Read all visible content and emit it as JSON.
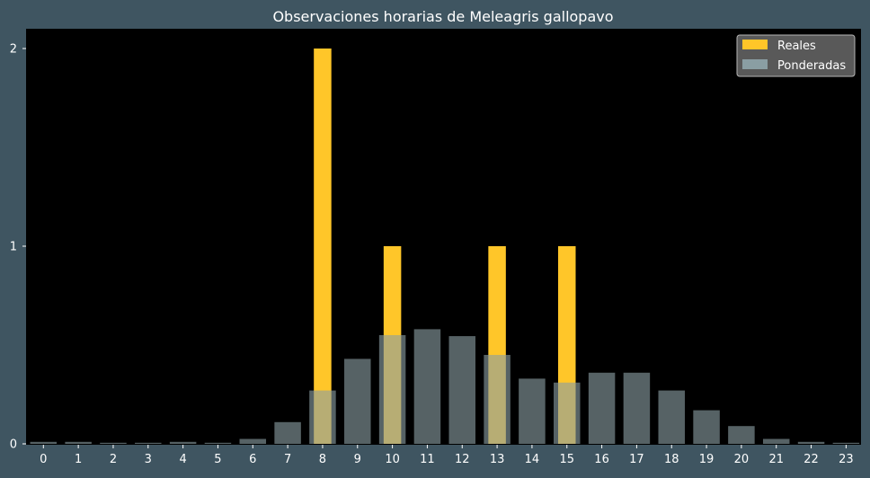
{
  "chart_data": {
    "type": "bar",
    "title": "Observaciones horarias de Meleagris gallopavo",
    "xlabel": "",
    "ylabel": "",
    "categories": [
      "0",
      "1",
      "2",
      "3",
      "4",
      "5",
      "6",
      "7",
      "8",
      "9",
      "10",
      "11",
      "12",
      "13",
      "14",
      "15",
      "16",
      "17",
      "18",
      "19",
      "20",
      "21",
      "22",
      "23"
    ],
    "ylim": [
      0,
      2.1
    ],
    "yticks": [
      0,
      1,
      2
    ],
    "grid": false,
    "legend_position": "top-right",
    "series": [
      {
        "name": "Reales",
        "color": "#ffc629",
        "values": [
          0,
          0,
          0,
          0,
          0,
          0,
          0,
          0,
          2,
          0,
          1,
          0,
          0,
          1,
          0,
          1,
          0,
          0,
          0,
          0,
          0,
          0,
          0,
          0
        ]
      },
      {
        "name": "Ponderadas",
        "color": "#8a9ea3",
        "values": [
          0.01,
          0.01,
          0.005,
          0.005,
          0.01,
          0.005,
          0.025,
          0.11,
          0.27,
          0.43,
          0.55,
          0.58,
          0.545,
          0.45,
          0.33,
          0.31,
          0.36,
          0.36,
          0.27,
          0.17,
          0.09,
          0.025,
          0.01,
          0.005
        ]
      }
    ]
  },
  "colors": {
    "figure_background": "#3f5561",
    "plot_background": "#000000",
    "text": "#ffffff",
    "legend_background": "#595959"
  }
}
